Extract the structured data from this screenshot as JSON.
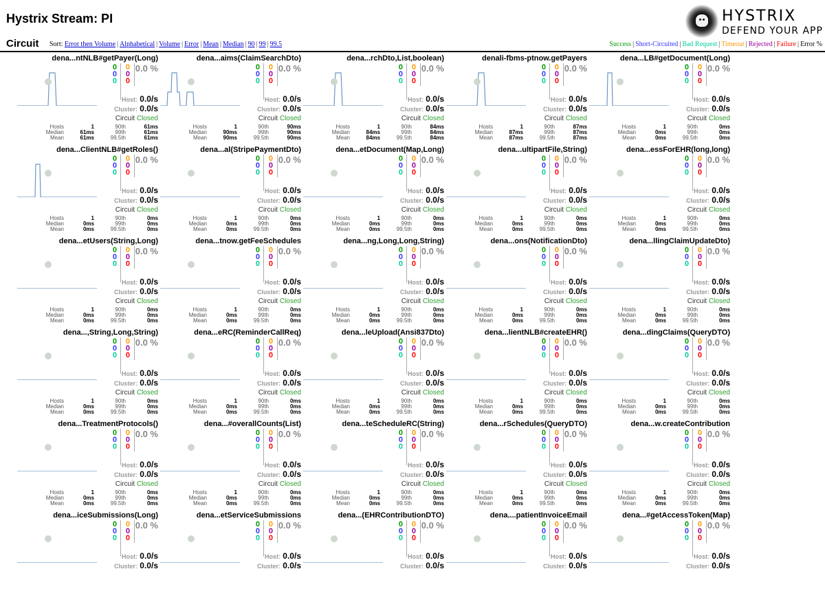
{
  "header": {
    "title": "Hystrix Stream: PI",
    "logo_title": "HYSTRIX",
    "logo_subtitle": "DEFEND YOUR APP"
  },
  "subheader": {
    "section_title": "Circuit",
    "sort_label": "Sort:",
    "sort_options": [
      "Error then Volume",
      "Alphabetical",
      "Volume",
      "Error",
      "Mean",
      "Median",
      "90",
      "99",
      "99.5"
    ],
    "legend": [
      {
        "label": "Success",
        "color": "#009900"
      },
      {
        "label": "Short-Circuited",
        "color": "#3333ff"
      },
      {
        "label": "Bad Request",
        "color": "#00cc99"
      },
      {
        "label": "Timeout",
        "color": "#ff9900"
      },
      {
        "label": "Rejected",
        "color": "#990099"
      },
      {
        "label": "Failure",
        "color": "#ff0000"
      },
      {
        "label": "Error %",
        "color": "#000000"
      }
    ]
  },
  "labels": {
    "host": "Host:",
    "cluster": "Cluster:",
    "circuit": "Circuit",
    "hosts": "Hosts",
    "median": "Median",
    "mean": "Mean",
    "p90": "90th",
    "p99": "99th",
    "p995": "99.5th"
  },
  "circuits": [
    {
      "name": "dena...ntNLB#getPayer(Long)",
      "success": "0",
      "short": "0",
      "bad": "0",
      "timeout": "0",
      "rejected": "0",
      "failure": "0",
      "error_pct": "0.0 %",
      "host_rate": "0.0/s",
      "cluster_rate": "0.0/s",
      "state": "Closed",
      "hosts": "1",
      "median": "61ms",
      "mean": "61ms",
      "p90": "61ms",
      "p99": "61ms",
      "p995": "61ms",
      "spark": "single"
    },
    {
      "name": "dena...aims(ClaimSearchDto)",
      "success": "0",
      "short": "0",
      "bad": "0",
      "timeout": "0",
      "rejected": "0",
      "failure": "0",
      "error_pct": "0.0 %",
      "host_rate": "0.0/s",
      "cluster_rate": "0.0/s",
      "state": "Closed",
      "hosts": "1",
      "median": "90ms",
      "mean": "90ms",
      "p90": "90ms",
      "p99": "90ms",
      "p995": "90ms",
      "spark": "double"
    },
    {
      "name": "dena...rchDto,List,boolean)",
      "success": "0",
      "short": "0",
      "bad": "0",
      "timeout": "0",
      "rejected": "0",
      "failure": "0",
      "error_pct": "0.0 %",
      "host_rate": "0.0/s",
      "cluster_rate": "0.0/s",
      "state": "Closed",
      "hosts": "1",
      "median": "84ms",
      "mean": "84ms",
      "p90": "84ms",
      "p99": "84ms",
      "p995": "84ms",
      "spark": "single"
    },
    {
      "name": "denali-fbms-ptnow.getPayers",
      "success": "0",
      "short": "0",
      "bad": "0",
      "timeout": "0",
      "rejected": "0",
      "failure": "0",
      "error_pct": "0.0 %",
      "host_rate": "0.0/s",
      "cluster_rate": "0.0/s",
      "state": "Closed",
      "hosts": "1",
      "median": "87ms",
      "mean": "87ms",
      "p90": "87ms",
      "p99": "87ms",
      "p995": "87ms",
      "spark": "single"
    },
    {
      "name": "dena...LB#getDocument(Long)",
      "success": "0",
      "short": "0",
      "bad": "0",
      "timeout": "0",
      "rejected": "0",
      "failure": "0",
      "error_pct": "0.0 %",
      "host_rate": "0.0/s",
      "cluster_rate": "0.0/s",
      "state": "Closed",
      "hosts": "1",
      "median": "0ms",
      "mean": "0ms",
      "p90": "0ms",
      "p99": "0ms",
      "p995": "0ms",
      "spark": "single-left"
    },
    {
      "name": "dena...ClientNLB#getRoles()",
      "success": "0",
      "short": "0",
      "bad": "0",
      "timeout": "0",
      "rejected": "0",
      "failure": "0",
      "error_pct": "0.0 %",
      "host_rate": "0.0/s",
      "cluster_rate": "0.0/s",
      "state": "Closed",
      "hosts": "1",
      "median": "0ms",
      "mean": "0ms",
      "p90": "0ms",
      "p99": "0ms",
      "p995": "0ms",
      "spark": "single-left"
    },
    {
      "name": "dena...al(StripePaymentDto)",
      "success": "0",
      "short": "0",
      "bad": "0",
      "timeout": "0",
      "rejected": "0",
      "failure": "0",
      "error_pct": "0.0 %",
      "host_rate": "0.0/s",
      "cluster_rate": "0.0/s",
      "state": "Closed",
      "hosts": "1",
      "median": "0ms",
      "mean": "0ms",
      "p90": "0ms",
      "p99": "0ms",
      "p995": "0ms",
      "spark": "flat"
    },
    {
      "name": "dena...etDocument(Map,Long)",
      "success": "0",
      "short": "0",
      "bad": "0",
      "timeout": "0",
      "rejected": "0",
      "failure": "0",
      "error_pct": "0.0 %",
      "host_rate": "0.0/s",
      "cluster_rate": "0.0/s",
      "state": "Closed",
      "hosts": "1",
      "median": "0ms",
      "mean": "0ms",
      "p90": "0ms",
      "p99": "0ms",
      "p995": "0ms",
      "spark": "flat"
    },
    {
      "name": "dena...ultipartFile,String)",
      "success": "0",
      "short": "0",
      "bad": "0",
      "timeout": "0",
      "rejected": "0",
      "failure": "0",
      "error_pct": "0.0 %",
      "host_rate": "0.0/s",
      "cluster_rate": "0.0/s",
      "state": "Closed",
      "hosts": "1",
      "median": "0ms",
      "mean": "0ms",
      "p90": "0ms",
      "p99": "0ms",
      "p995": "0ms",
      "spark": "flat"
    },
    {
      "name": "dena...essForEHR(long,long)",
      "success": "0",
      "short": "0",
      "bad": "0",
      "timeout": "0",
      "rejected": "0",
      "failure": "0",
      "error_pct": "0.0 %",
      "host_rate": "0.0/s",
      "cluster_rate": "0.0/s",
      "state": "Closed",
      "hosts": "1",
      "median": "0ms",
      "mean": "0ms",
      "p90": "0ms",
      "p99": "0ms",
      "p995": "0ms",
      "spark": "flat"
    },
    {
      "name": "dena...etUsers(String,Long)",
      "success": "0",
      "short": "0",
      "bad": "0",
      "timeout": "0",
      "rejected": "0",
      "failure": "0",
      "error_pct": "0.0 %",
      "host_rate": "0.0/s",
      "cluster_rate": "0.0/s",
      "state": "Closed",
      "hosts": "1",
      "median": "0ms",
      "mean": "0ms",
      "p90": "0ms",
      "p99": "0ms",
      "p995": "0ms",
      "spark": "flat"
    },
    {
      "name": "dena...tnow.getFeeSchedules",
      "success": "0",
      "short": "0",
      "bad": "0",
      "timeout": "0",
      "rejected": "0",
      "failure": "0",
      "error_pct": "0.0 %",
      "host_rate": "0.0/s",
      "cluster_rate": "0.0/s",
      "state": "Closed",
      "hosts": "1",
      "median": "0ms",
      "mean": "0ms",
      "p90": "0ms",
      "p99": "0ms",
      "p995": "0ms",
      "spark": "flat"
    },
    {
      "name": "dena...ng,Long,Long,String)",
      "success": "0",
      "short": "0",
      "bad": "0",
      "timeout": "0",
      "rejected": "0",
      "failure": "0",
      "error_pct": "0.0 %",
      "host_rate": "0.0/s",
      "cluster_rate": "0.0/s",
      "state": "Closed",
      "hosts": "1",
      "median": "0ms",
      "mean": "0ms",
      "p90": "0ms",
      "p99": "0ms",
      "p995": "0ms",
      "spark": "flat"
    },
    {
      "name": "dena...ons(NotificationDto)",
      "success": "0",
      "short": "0",
      "bad": "0",
      "timeout": "0",
      "rejected": "0",
      "failure": "0",
      "error_pct": "0.0 %",
      "host_rate": "0.0/s",
      "cluster_rate": "0.0/s",
      "state": "Closed",
      "hosts": "1",
      "median": "0ms",
      "mean": "0ms",
      "p90": "0ms",
      "p99": "0ms",
      "p995": "0ms",
      "spark": "flat"
    },
    {
      "name": "dena...llingClaimUpdateDto)",
      "success": "0",
      "short": "0",
      "bad": "0",
      "timeout": "0",
      "rejected": "0",
      "failure": "0",
      "error_pct": "0.0 %",
      "host_rate": "0.0/s",
      "cluster_rate": "0.0/s",
      "state": "Closed",
      "hosts": "1",
      "median": "0ms",
      "mean": "0ms",
      "p90": "0ms",
      "p99": "0ms",
      "p995": "0ms",
      "spark": "flat"
    },
    {
      "name": "dena...,String,Long,String)",
      "success": "0",
      "short": "0",
      "bad": "0",
      "timeout": "0",
      "rejected": "0",
      "failure": "0",
      "error_pct": "0.0 %",
      "host_rate": "0.0/s",
      "cluster_rate": "0.0/s",
      "state": "Closed",
      "hosts": "1",
      "median": "0ms",
      "mean": "0ms",
      "p90": "0ms",
      "p99": "0ms",
      "p995": "0ms",
      "spark": "flat"
    },
    {
      "name": "dena...eRC(ReminderCallReq)",
      "success": "0",
      "short": "0",
      "bad": "0",
      "timeout": "0",
      "rejected": "0",
      "failure": "0",
      "error_pct": "0.0 %",
      "host_rate": "0.0/s",
      "cluster_rate": "0.0/s",
      "state": "Closed",
      "hosts": "1",
      "median": "0ms",
      "mean": "0ms",
      "p90": "0ms",
      "p99": "0ms",
      "p995": "0ms",
      "spark": "flat"
    },
    {
      "name": "dena...leUpload(Ansi837Dto)",
      "success": "0",
      "short": "0",
      "bad": "0",
      "timeout": "0",
      "rejected": "0",
      "failure": "0",
      "error_pct": "0.0 %",
      "host_rate": "0.0/s",
      "cluster_rate": "0.0/s",
      "state": "Closed",
      "hosts": "1",
      "median": "0ms",
      "mean": "0ms",
      "p90": "0ms",
      "p99": "0ms",
      "p995": "0ms",
      "spark": "flat"
    },
    {
      "name": "dena...lientNLB#createEHR()",
      "success": "0",
      "short": "0",
      "bad": "0",
      "timeout": "0",
      "rejected": "0",
      "failure": "0",
      "error_pct": "0.0 %",
      "host_rate": "0.0/s",
      "cluster_rate": "0.0/s",
      "state": "Closed",
      "hosts": "1",
      "median": "0ms",
      "mean": "0ms",
      "p90": "0ms",
      "p99": "0ms",
      "p995": "0ms",
      "spark": "flat"
    },
    {
      "name": "dena...dingClaims(QueryDTO)",
      "success": "0",
      "short": "0",
      "bad": "0",
      "timeout": "0",
      "rejected": "0",
      "failure": "0",
      "error_pct": "0.0 %",
      "host_rate": "0.0/s",
      "cluster_rate": "0.0/s",
      "state": "Closed",
      "hosts": "1",
      "median": "0ms",
      "mean": "0ms",
      "p90": "0ms",
      "p99": "0ms",
      "p995": "0ms",
      "spark": "flat"
    },
    {
      "name": "dena...TreatmentProtocols()",
      "success": "0",
      "short": "0",
      "bad": "0",
      "timeout": "0",
      "rejected": "0",
      "failure": "0",
      "error_pct": "0.0 %",
      "host_rate": "0.0/s",
      "cluster_rate": "0.0/s",
      "state": "Closed",
      "hosts": "1",
      "median": "0ms",
      "mean": "0ms",
      "p90": "0ms",
      "p99": "0ms",
      "p995": "0ms",
      "spark": "flat"
    },
    {
      "name": "dena...#overallCounts(List)",
      "success": "0",
      "short": "0",
      "bad": "0",
      "timeout": "0",
      "rejected": "0",
      "failure": "0",
      "error_pct": "0.0 %",
      "host_rate": "0.0/s",
      "cluster_rate": "0.0/s",
      "state": "Closed",
      "hosts": "1",
      "median": "0ms",
      "mean": "0ms",
      "p90": "0ms",
      "p99": "0ms",
      "p995": "0ms",
      "spark": "flat"
    },
    {
      "name": "dena...teScheduleRC(String)",
      "success": "0",
      "short": "0",
      "bad": "0",
      "timeout": "0",
      "rejected": "0",
      "failure": "0",
      "error_pct": "0.0 %",
      "host_rate": "0.0/s",
      "cluster_rate": "0.0/s",
      "state": "Closed",
      "hosts": "1",
      "median": "0ms",
      "mean": "0ms",
      "p90": "0ms",
      "p99": "0ms",
      "p995": "0ms",
      "spark": "flat"
    },
    {
      "name": "dena...rSchedules(QueryDTO)",
      "success": "0",
      "short": "0",
      "bad": "0",
      "timeout": "0",
      "rejected": "0",
      "failure": "0",
      "error_pct": "0.0 %",
      "host_rate": "0.0/s",
      "cluster_rate": "0.0/s",
      "state": "Closed",
      "hosts": "1",
      "median": "0ms",
      "mean": "0ms",
      "p90": "0ms",
      "p99": "0ms",
      "p995": "0ms",
      "spark": "flat"
    },
    {
      "name": "dena...w.createContribution",
      "success": "0",
      "short": "0",
      "bad": "0",
      "timeout": "0",
      "rejected": "0",
      "failure": "0",
      "error_pct": "0.0 %",
      "host_rate": "0.0/s",
      "cluster_rate": "0.0/s",
      "state": "Closed",
      "hosts": "1",
      "median": "0ms",
      "mean": "0ms",
      "p90": "0ms",
      "p99": "0ms",
      "p995": "0ms",
      "spark": "flat"
    },
    {
      "name": "dena...iceSubmissions(Long)",
      "success": "0",
      "short": "0",
      "bad": "0",
      "timeout": "0",
      "rejected": "0",
      "failure": "0",
      "error_pct": "0.0 %",
      "host_rate": "0.0/s",
      "cluster_rate": "0.0/s",
      "state": "",
      "hosts": "",
      "median": "",
      "mean": "",
      "p90": "",
      "p99": "",
      "p995": "",
      "spark": "flat"
    },
    {
      "name": "dena...etServiceSubmissions",
      "success": "0",
      "short": "0",
      "bad": "0",
      "timeout": "0",
      "rejected": "0",
      "failure": "0",
      "error_pct": "0.0 %",
      "host_rate": "0.0/s",
      "cluster_rate": "0.0/s",
      "state": "",
      "hosts": "",
      "median": "",
      "mean": "",
      "p90": "",
      "p99": "",
      "p995": "",
      "spark": "flat"
    },
    {
      "name": "dena...(EHRContributionDTO)",
      "success": "0",
      "short": "0",
      "bad": "0",
      "timeout": "0",
      "rejected": "0",
      "failure": "0",
      "error_pct": "0.0 %",
      "host_rate": "0.0/s",
      "cluster_rate": "0.0/s",
      "state": "",
      "hosts": "",
      "median": "",
      "mean": "",
      "p90": "",
      "p99": "",
      "p995": "",
      "spark": "flat"
    },
    {
      "name": "dena....patientInvoiceEmail",
      "success": "0",
      "short": "0",
      "bad": "0",
      "timeout": "0",
      "rejected": "0",
      "failure": "0",
      "error_pct": "0.0 %",
      "host_rate": "0.0/s",
      "cluster_rate": "0.0/s",
      "state": "",
      "hosts": "",
      "median": "",
      "mean": "",
      "p90": "",
      "p99": "",
      "p995": "",
      "spark": "flat"
    },
    {
      "name": "dena...#getAccessToken(Map)",
      "success": "0",
      "short": "0",
      "bad": "0",
      "timeout": "0",
      "rejected": "0",
      "failure": "0",
      "error_pct": "0.0 %",
      "host_rate": "0.0/s",
      "cluster_rate": "0.0/s",
      "state": "",
      "hosts": "",
      "median": "",
      "mean": "",
      "p90": "",
      "p99": "",
      "p995": "",
      "spark": "flat"
    }
  ]
}
